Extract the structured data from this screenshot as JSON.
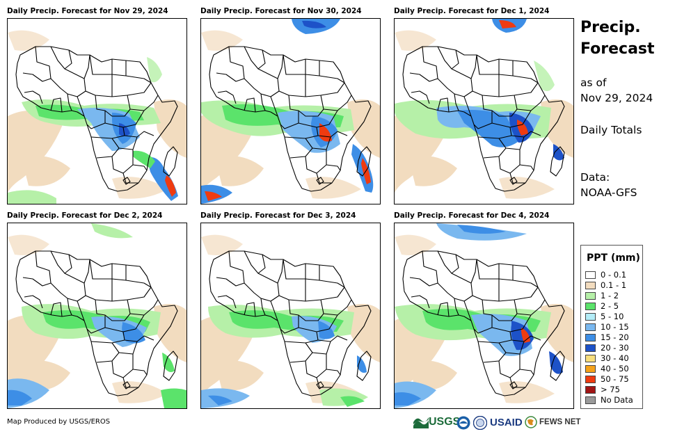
{
  "panels": [
    {
      "title": "Daily Precip. Forecast for Nov 29, 2024"
    },
    {
      "title": "Daily Precip. Forecast for Nov 30, 2024"
    },
    {
      "title": "Daily Precip. Forecast for Dec 1, 2024"
    },
    {
      "title": "Daily Precip. Forecast for Dec 2, 2024"
    },
    {
      "title": "Daily Precip. Forecast for Dec 3, 2024"
    },
    {
      "title": "Daily Precip. Forecast for Dec 4, 2024"
    }
  ],
  "side": {
    "title_line1": "Precip.",
    "title_line2": "Forecast",
    "as_of_label": "as of",
    "as_of_date": "Nov 29, 2024",
    "totals_label": "Daily Totals",
    "data_label": "Data:",
    "data_source": "NOAA-GFS"
  },
  "legend": {
    "title": "PPT (mm)",
    "items": [
      {
        "label": "0 - 0.1",
        "color": "#ffffff"
      },
      {
        "label": "0.1 - 1",
        "color": "#f2dcbf"
      },
      {
        "label": "1 - 2",
        "color": "#b6f0a8"
      },
      {
        "label": "2 - 5",
        "color": "#5be36b"
      },
      {
        "label": "5 - 10",
        "color": "#b3ecf7"
      },
      {
        "label": "10 - 15",
        "color": "#7ab8ef"
      },
      {
        "label": "15 - 20",
        "color": "#3d8ee6"
      },
      {
        "label": "20 - 30",
        "color": "#1d52c8"
      },
      {
        "label": "30 - 40",
        "color": "#f7de7c"
      },
      {
        "label": "40 - 50",
        "color": "#f5a21a"
      },
      {
        "label": "50 - 75",
        "color": "#ef3b10"
      },
      {
        "label": "> 75",
        "color": "#a11414"
      },
      {
        "label": "No Data",
        "color": "#9a9a9a"
      }
    ]
  },
  "footer": {
    "credit": "Map Produced by USGS/EROS",
    "logo_usgs": "USGS",
    "logo_usaid": "USAID",
    "logo_fewsnet": "FEWS NET"
  }
}
